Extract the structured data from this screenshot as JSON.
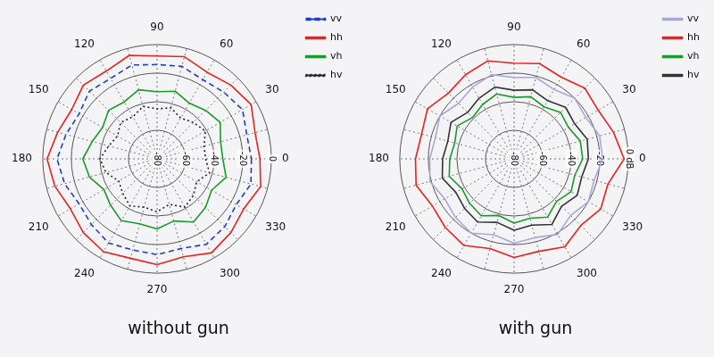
{
  "chart_data": [
    {
      "type": "radar",
      "title": "without gun",
      "categories": [
        "0",
        null,
        "330",
        null,
        "300",
        null,
        "270",
        null,
        "240",
        null,
        "210",
        null,
        "180",
        null,
        "150",
        null,
        "120",
        null,
        "90",
        null,
        "60",
        null,
        "30",
        null
      ],
      "series": [
        {
          "name": "vv",
          "color": "#1f3fbf",
          "line_style": "dashed",
          "values": [
            -14,
            -12,
            -16,
            -13,
            -11,
            -15,
            -13,
            -14,
            -12,
            -15,
            -17,
            -13,
            -10,
            -14,
            -17,
            -13,
            -15,
            -12,
            -14,
            -13,
            -16,
            -14,
            -11,
            -15
          ]
        },
        {
          "name": "hh",
          "color": "#e8231f",
          "line_style": "solid",
          "values": [
            -8,
            -5,
            -10,
            -7,
            -4,
            -9,
            -6,
            -8,
            -5,
            -7,
            -10,
            -6,
            -3,
            -8,
            -11,
            -7,
            -9,
            -5,
            -8,
            -6,
            -10,
            -7,
            -4,
            -9
          ]
        },
        {
          "name": "vh",
          "color": "#1a9a2a",
          "line_style": "solid",
          "values": [
            -34,
            -30,
            -36,
            -32,
            -29,
            -35,
            -31,
            -33,
            -30,
            -34,
            -37,
            -31,
            -28,
            -33,
            -36,
            -32,
            -34,
            -30,
            -33,
            -31,
            -35,
            -32,
            -29,
            -34
          ]
        },
        {
          "name": "hv",
          "color": "#222222",
          "line_style": "dotted",
          "values": [
            -46,
            -42,
            -48,
            -44,
            -41,
            -47,
            -43,
            -45,
            -42,
            -46,
            -49,
            -43,
            -40,
            -45,
            -48,
            -44,
            -46,
            -42,
            -45,
            -43,
            -47,
            -44,
            -41,
            -46
          ]
        }
      ],
      "ylim": [
        -80,
        0
      ],
      "yticks": [
        -80,
        -60,
        -40,
        -20,
        0
      ],
      "grid": true,
      "legend": "top right"
    },
    {
      "type": "radar",
      "title": "with gun",
      "categories": [
        "0",
        null,
        "330",
        null,
        "300",
        null,
        "270",
        null,
        "240",
        null,
        "210",
        null,
        "180",
        null,
        "150",
        null,
        "120",
        null,
        "90",
        null,
        "60",
        null,
        "30",
        null
      ],
      "series": [
        {
          "name": "vv",
          "color": "#a9a6d8",
          "line_style": "solid",
          "values": [
            -18,
            -22,
            -20,
            -24,
            -19,
            -23,
            -21,
            -25,
            -20,
            -22,
            -24,
            -19,
            -21,
            -23,
            -20,
            -25,
            -22,
            -19,
            -23,
            -21,
            -24,
            -20,
            -22,
            -18
          ]
        },
        {
          "name": "hh",
          "color": "#e8231f",
          "line_style": "solid",
          "values": [
            -3,
            -12,
            -10,
            -14,
            -9,
            -13,
            -11,
            -15,
            -10,
            -12,
            -14,
            -9,
            -11,
            -13,
            -10,
            -15,
            -12,
            -9,
            -13,
            -11,
            -14,
            -10,
            -12,
            -8
          ]
        },
        {
          "name": "vh",
          "color": "#1a9a2a",
          "line_style": "solid",
          "values": [
            -32,
            -36,
            -34,
            -38,
            -33,
            -37,
            -35,
            -39,
            -34,
            -36,
            -38,
            -33,
            -35,
            -37,
            -34,
            -39,
            -36,
            -33,
            -37,
            -35,
            -38,
            -34,
            -36,
            -32
          ]
        },
        {
          "name": "hv",
          "color": "#333333",
          "line_style": "solid",
          "values": [
            -28,
            -31,
            -29,
            -33,
            -27,
            -32,
            -30,
            -34,
            -29,
            -31,
            -33,
            -28,
            -30,
            -32,
            -29,
            -34,
            -31,
            -28,
            -32,
            -30,
            -33,
            -29,
            -31,
            -27
          ]
        }
      ],
      "ylim": [
        -80,
        0
      ],
      "yticks": [
        -80,
        -60,
        -40,
        -20,
        {
          "value": 0,
          "label": "0 dB"
        }
      ],
      "grid": true,
      "legend": "top right"
    }
  ]
}
